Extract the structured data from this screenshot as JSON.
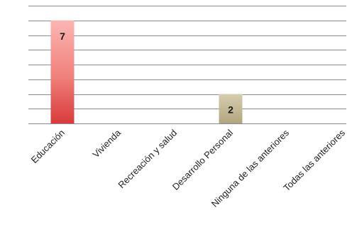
{
  "chart_data": {
    "type": "bar",
    "categories": [
      "Educación",
      "Vivienda",
      "Recreación y salud",
      "Desarrollo Personal",
      "Ninguna de las anteriores",
      "Todas las anteriores"
    ],
    "values": [
      7,
      0,
      0,
      2,
      0,
      0
    ],
    "data_labels": [
      "7",
      "",
      "",
      "2",
      "",
      ""
    ],
    "bar_colors": [
      "#e84a4a",
      "",
      "",
      "#c4b99a",
      "",
      ""
    ],
    "title": "",
    "xlabel": "",
    "ylabel": "",
    "ylim": [
      0,
      8
    ],
    "grid": true,
    "legend": "none"
  }
}
